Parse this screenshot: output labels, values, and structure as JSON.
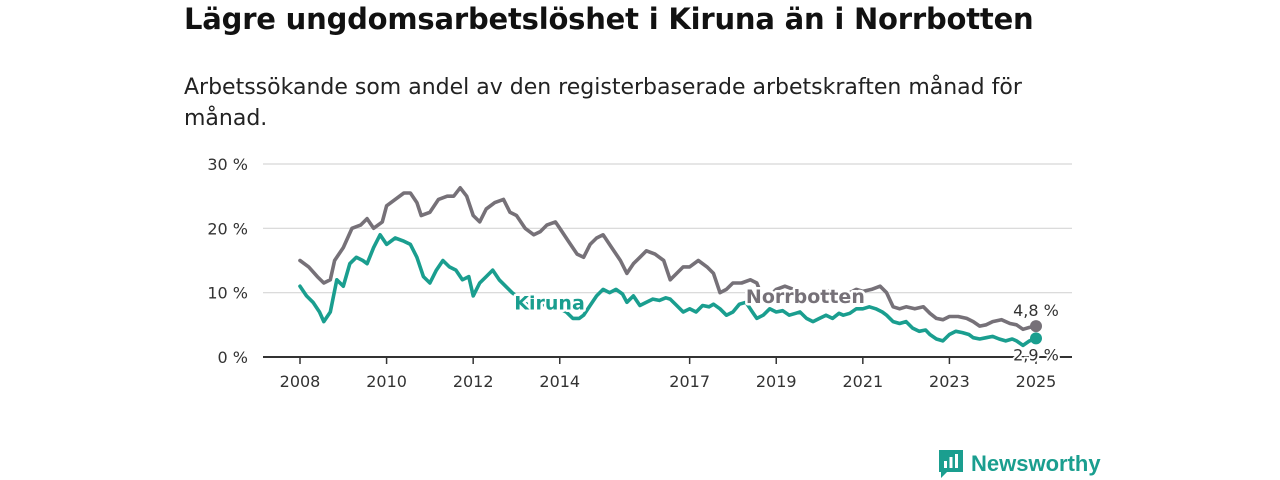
{
  "header": {
    "title": "Lägre ungdomsarbetslöshet i Kiruna än i Norrbotten",
    "subtitle": "Arbetssökande som andel av den registerbaserade arbetskraften månad för månad."
  },
  "brand": {
    "name": "Newsworthy",
    "color": "#1a9e8f"
  },
  "chart_data": {
    "type": "line",
    "title": "Lägre ungdomsarbetslöshet i Kiruna än i Norrbotten",
    "subtitle": "Arbetssökande som andel av den registerbaserade arbetskraften månad för månad.",
    "xlabel": "",
    "ylabel": "",
    "x_range": [
      2008.0,
      2025.0
    ],
    "ylim": [
      0,
      30
    ],
    "y_ticks": [
      {
        "value": 0,
        "label": "0 %"
      },
      {
        "value": 10,
        "label": "10 %"
      },
      {
        "value": 20,
        "label": "20 %"
      },
      {
        "value": 30,
        "label": "30 %"
      }
    ],
    "x_ticks": [
      {
        "value": 2008,
        "label": "2008"
      },
      {
        "value": 2010,
        "label": "2010"
      },
      {
        "value": 2012,
        "label": "2012"
      },
      {
        "value": 2014,
        "label": "2014"
      },
      {
        "value": 2017,
        "label": "2017"
      },
      {
        "value": 2019,
        "label": "2019"
      },
      {
        "value": 2021,
        "label": "2021"
      },
      {
        "value": 2023,
        "label": "2023"
      },
      {
        "value": 2025,
        "label": "2025"
      }
    ],
    "grid": true,
    "series": [
      {
        "name": "Norrbotten",
        "label": "Norrbotten",
        "color": "#767178",
        "label_at": {
          "x": 2018.3,
          "y": 8.4
        },
        "end_label": "4,8 %",
        "points": [
          [
            2008.0,
            15.0
          ],
          [
            2008.2,
            14.0
          ],
          [
            2008.4,
            12.5
          ],
          [
            2008.55,
            11.5
          ],
          [
            2008.7,
            12.0
          ],
          [
            2008.8,
            15.0
          ],
          [
            2009.0,
            17.0
          ],
          [
            2009.2,
            20.0
          ],
          [
            2009.4,
            20.5
          ],
          [
            2009.55,
            21.5
          ],
          [
            2009.7,
            20.0
          ],
          [
            2009.9,
            21.0
          ],
          [
            2010.0,
            23.5
          ],
          [
            2010.2,
            24.5
          ],
          [
            2010.4,
            25.5
          ],
          [
            2010.55,
            25.5
          ],
          [
            2010.7,
            24.0
          ],
          [
            2010.8,
            22.0
          ],
          [
            2011.0,
            22.5
          ],
          [
            2011.2,
            24.5
          ],
          [
            2011.4,
            25.0
          ],
          [
            2011.55,
            25.0
          ],
          [
            2011.7,
            26.3
          ],
          [
            2011.85,
            25.0
          ],
          [
            2012.0,
            22.0
          ],
          [
            2012.15,
            21.0
          ],
          [
            2012.3,
            23.0
          ],
          [
            2012.5,
            24.0
          ],
          [
            2012.7,
            24.5
          ],
          [
            2012.85,
            22.5
          ],
          [
            2013.0,
            22.0
          ],
          [
            2013.2,
            20.0
          ],
          [
            2013.4,
            19.0
          ],
          [
            2013.55,
            19.5
          ],
          [
            2013.7,
            20.5
          ],
          [
            2013.9,
            21.0
          ],
          [
            2014.0,
            20.0
          ],
          [
            2014.2,
            18.0
          ],
          [
            2014.4,
            16.0
          ],
          [
            2014.55,
            15.5
          ],
          [
            2014.7,
            17.5
          ],
          [
            2014.85,
            18.5
          ],
          [
            2015.0,
            19.0
          ],
          [
            2015.2,
            17.0
          ],
          [
            2015.4,
            15.0
          ],
          [
            2015.55,
            13.0
          ],
          [
            2015.7,
            14.5
          ],
          [
            2015.85,
            15.5
          ],
          [
            2016.0,
            16.5
          ],
          [
            2016.2,
            16.0
          ],
          [
            2016.4,
            15.0
          ],
          [
            2016.55,
            12.0
          ],
          [
            2016.7,
            13.0
          ],
          [
            2016.85,
            14.0
          ],
          [
            2017.0,
            14.0
          ],
          [
            2017.2,
            15.0
          ],
          [
            2017.4,
            14.0
          ],
          [
            2017.55,
            13.0
          ],
          [
            2017.7,
            10.0
          ],
          [
            2017.85,
            10.5
          ],
          [
            2018.0,
            11.5
          ],
          [
            2018.2,
            11.5
          ],
          [
            2018.4,
            12.0
          ],
          [
            2018.55,
            11.5
          ],
          [
            2018.7,
            9.0
          ],
          [
            2018.85,
            9.5
          ],
          [
            2019.0,
            10.5
          ],
          [
            2019.2,
            11.0
          ],
          [
            2019.4,
            10.5
          ],
          [
            2019.55,
            10.0
          ],
          [
            2019.7,
            9.5
          ],
          [
            2019.85,
            9.8
          ],
          [
            2020.0,
            10.0
          ],
          [
            2020.2,
            10.2
          ],
          [
            2020.4,
            10.0
          ],
          [
            2020.55,
            9.8
          ],
          [
            2020.7,
            10.0
          ],
          [
            2020.85,
            10.5
          ],
          [
            2021.0,
            10.2
          ],
          [
            2021.2,
            10.5
          ],
          [
            2021.4,
            11.0
          ],
          [
            2021.55,
            10.0
          ],
          [
            2021.7,
            7.8
          ],
          [
            2021.85,
            7.5
          ],
          [
            2022.0,
            7.8
          ],
          [
            2022.2,
            7.5
          ],
          [
            2022.4,
            7.8
          ],
          [
            2022.55,
            6.8
          ],
          [
            2022.7,
            6.0
          ],
          [
            2022.85,
            5.8
          ],
          [
            2023.0,
            6.3
          ],
          [
            2023.2,
            6.3
          ],
          [
            2023.4,
            6.0
          ],
          [
            2023.55,
            5.5
          ],
          [
            2023.7,
            4.8
          ],
          [
            2023.85,
            5.0
          ],
          [
            2024.0,
            5.5
          ],
          [
            2024.2,
            5.8
          ],
          [
            2024.4,
            5.2
          ],
          [
            2024.55,
            5.0
          ],
          [
            2024.7,
            4.3
          ],
          [
            2024.85,
            4.6
          ],
          [
            2025.0,
            4.8
          ]
        ]
      },
      {
        "name": "Kiruna",
        "label": "Kiruna",
        "color": "#1a9e8f",
        "label_at": {
          "x": 2012.95,
          "y": 7.4
        },
        "end_label": "2,9 %",
        "points": [
          [
            2008.0,
            11.0
          ],
          [
            2008.15,
            9.5
          ],
          [
            2008.3,
            8.5
          ],
          [
            2008.45,
            7.0
          ],
          [
            2008.55,
            5.5
          ],
          [
            2008.7,
            7.0
          ],
          [
            2008.85,
            12.0
          ],
          [
            2009.0,
            11.0
          ],
          [
            2009.15,
            14.5
          ],
          [
            2009.3,
            15.5
          ],
          [
            2009.45,
            15.0
          ],
          [
            2009.55,
            14.5
          ],
          [
            2009.7,
            17.0
          ],
          [
            2009.85,
            19.0
          ],
          [
            2010.0,
            17.5
          ],
          [
            2010.2,
            18.5
          ],
          [
            2010.4,
            18.0
          ],
          [
            2010.55,
            17.5
          ],
          [
            2010.7,
            15.5
          ],
          [
            2010.85,
            12.5
          ],
          [
            2011.0,
            11.5
          ],
          [
            2011.15,
            13.5
          ],
          [
            2011.3,
            15.0
          ],
          [
            2011.45,
            14.0
          ],
          [
            2011.6,
            13.5
          ],
          [
            2011.75,
            12.0
          ],
          [
            2011.9,
            12.5
          ],
          [
            2012.0,
            9.5
          ],
          [
            2012.15,
            11.5
          ],
          [
            2012.3,
            12.5
          ],
          [
            2012.45,
            13.5
          ],
          [
            2012.6,
            12.0
          ],
          [
            2012.75,
            11.0
          ],
          [
            2012.9,
            10.0
          ],
          [
            2013.0,
            9.5
          ],
          [
            2013.15,
            8.5
          ],
          [
            2013.3,
            8.0
          ],
          [
            2013.45,
            8.2
          ],
          [
            2013.55,
            8.3
          ],
          [
            2013.7,
            8.0
          ],
          [
            2013.85,
            7.8
          ],
          [
            2014.0,
            7.5
          ],
          [
            2014.15,
            7.0
          ],
          [
            2014.3,
            6.0
          ],
          [
            2014.45,
            6.0
          ],
          [
            2014.55,
            6.5
          ],
          [
            2014.7,
            8.0
          ],
          [
            2014.85,
            9.5
          ],
          [
            2015.0,
            10.5
          ],
          [
            2015.15,
            10.0
          ],
          [
            2015.3,
            10.5
          ],
          [
            2015.45,
            9.8
          ],
          [
            2015.55,
            8.5
          ],
          [
            2015.7,
            9.5
          ],
          [
            2015.85,
            8.0
          ],
          [
            2016.0,
            8.5
          ],
          [
            2016.15,
            9.0
          ],
          [
            2016.3,
            8.8
          ],
          [
            2016.45,
            9.2
          ],
          [
            2016.55,
            9.0
          ],
          [
            2016.7,
            8.0
          ],
          [
            2016.85,
            7.0
          ],
          [
            2017.0,
            7.5
          ],
          [
            2017.15,
            7.0
          ],
          [
            2017.3,
            8.0
          ],
          [
            2017.45,
            7.8
          ],
          [
            2017.55,
            8.2
          ],
          [
            2017.7,
            7.5
          ],
          [
            2017.85,
            6.5
          ],
          [
            2018.0,
            7.0
          ],
          [
            2018.15,
            8.2
          ],
          [
            2018.3,
            8.5
          ],
          [
            2018.45,
            7.0
          ],
          [
            2018.55,
            6.0
          ],
          [
            2018.7,
            6.5
          ],
          [
            2018.85,
            7.5
          ],
          [
            2019.0,
            7.0
          ],
          [
            2019.15,
            7.2
          ],
          [
            2019.3,
            6.5
          ],
          [
            2019.45,
            6.8
          ],
          [
            2019.55,
            7.0
          ],
          [
            2019.7,
            6.0
          ],
          [
            2019.85,
            5.5
          ],
          [
            2020.0,
            6.0
          ],
          [
            2020.15,
            6.5
          ],
          [
            2020.3,
            6.0
          ],
          [
            2020.45,
            6.8
          ],
          [
            2020.55,
            6.5
          ],
          [
            2020.7,
            6.8
          ],
          [
            2020.85,
            7.5
          ],
          [
            2021.0,
            7.5
          ],
          [
            2021.15,
            7.8
          ],
          [
            2021.3,
            7.5
          ],
          [
            2021.45,
            7.0
          ],
          [
            2021.55,
            6.5
          ],
          [
            2021.7,
            5.5
          ],
          [
            2021.85,
            5.2
          ],
          [
            2022.0,
            5.5
          ],
          [
            2022.15,
            4.5
          ],
          [
            2022.3,
            4.0
          ],
          [
            2022.45,
            4.2
          ],
          [
            2022.55,
            3.5
          ],
          [
            2022.7,
            2.8
          ],
          [
            2022.85,
            2.5
          ],
          [
            2023.0,
            3.5
          ],
          [
            2023.15,
            4.0
          ],
          [
            2023.3,
            3.8
          ],
          [
            2023.45,
            3.5
          ],
          [
            2023.55,
            3.0
          ],
          [
            2023.7,
            2.8
          ],
          [
            2023.85,
            3.0
          ],
          [
            2024.0,
            3.2
          ],
          [
            2024.15,
            2.8
          ],
          [
            2024.3,
            2.5
          ],
          [
            2024.45,
            2.8
          ],
          [
            2024.55,
            2.5
          ],
          [
            2024.7,
            1.8
          ],
          [
            2024.85,
            2.5
          ],
          [
            2025.0,
            2.9
          ]
        ]
      }
    ]
  }
}
